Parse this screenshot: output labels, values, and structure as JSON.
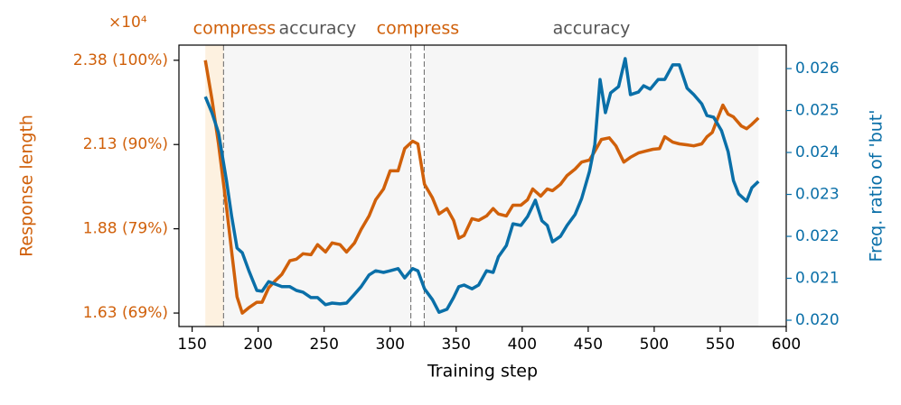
{
  "chart_data": {
    "type": "line",
    "xlabel": "Training step",
    "ylabel": "Response length",
    "y2label": "Freq. ratio of 'but'",
    "y_offset_label": "×10⁴",
    "xlim": [
      140,
      600
    ],
    "xticks": [
      150,
      200,
      250,
      300,
      350,
      400,
      450,
      500,
      550,
      600
    ],
    "ylim": [
      1.59,
      2.425
    ],
    "yticks": [
      {
        "value": 1.63,
        "label": "1.63 (69%)"
      },
      {
        "value": 1.88,
        "label": "1.88 (79%)"
      },
      {
        "value": 2.13,
        "label": "2.13 (90%)"
      },
      {
        "value": 2.38,
        "label": "2.38 (100%)"
      }
    ],
    "y2lim": [
      0.01985,
      0.02656
    ],
    "y2ticks": [
      {
        "value": 0.02,
        "label": "0.020"
      },
      {
        "value": 0.021,
        "label": "0.021"
      },
      {
        "value": 0.022,
        "label": "0.022"
      },
      {
        "value": 0.023,
        "label": "0.023"
      },
      {
        "value": 0.024,
        "label": "0.024"
      },
      {
        "value": 0.025,
        "label": "0.025"
      },
      {
        "value": 0.026,
        "label": "0.026"
      }
    ],
    "regions": [
      {
        "label": "compress",
        "start": 160,
        "end": 174,
        "color": "#fdf1e0",
        "label_color": "#d0600a"
      },
      {
        "label": "accuracy",
        "start": 174,
        "end": 316,
        "color": "#f6f6f6",
        "label_color": "#555555"
      },
      {
        "label": "compress",
        "start": 316,
        "end": 326,
        "color": "#ffffff",
        "label_color": "#d0600a"
      },
      {
        "label": "accuracy",
        "start": 326,
        "end": 579,
        "color": "#f6f6f6",
        "label_color": "#555555"
      }
    ],
    "series": [
      {
        "name": "Response length",
        "color": "#d0600a",
        "axis": "y",
        "x": [
          160,
          165,
          170,
          176,
          180,
          184,
          188,
          193,
          199,
          203,
          208,
          213,
          218,
          224,
          229,
          234,
          240,
          245,
          251,
          256,
          262,
          267,
          273,
          278,
          284,
          289,
          295,
          300,
          306,
          311,
          317,
          321,
          326,
          332,
          337,
          343,
          348,
          352,
          356,
          362,
          367,
          373,
          378,
          382,
          388,
          393,
          399,
          404,
          408,
          414,
          419,
          423,
          429,
          434,
          440,
          445,
          451,
          455,
          460,
          466,
          471,
          477,
          482,
          488,
          493,
          499,
          504,
          508,
          514,
          519,
          525,
          530,
          536,
          540,
          544,
          548,
          552,
          556,
          560,
          566,
          570,
          574,
          579
        ],
        "values": [
          2.38,
          2.265,
          2.132,
          1.945,
          1.811,
          1.678,
          1.63,
          1.646,
          1.662,
          1.662,
          1.705,
          1.726,
          1.745,
          1.785,
          1.79,
          1.806,
          1.803,
          1.833,
          1.811,
          1.838,
          1.833,
          1.811,
          1.838,
          1.878,
          1.918,
          1.966,
          1.998,
          2.052,
          2.052,
          2.118,
          2.14,
          2.132,
          2.012,
          1.972,
          1.924,
          1.94,
          1.905,
          1.852,
          1.86,
          1.91,
          1.905,
          1.918,
          1.94,
          1.924,
          1.918,
          1.95,
          1.95,
          1.966,
          1.998,
          1.977,
          1.998,
          1.993,
          2.012,
          2.038,
          2.057,
          2.078,
          2.084,
          2.11,
          2.145,
          2.15,
          2.126,
          2.078,
          2.092,
          2.105,
          2.11,
          2.116,
          2.118,
          2.153,
          2.137,
          2.132,
          2.129,
          2.126,
          2.132,
          2.153,
          2.166,
          2.207,
          2.247,
          2.22,
          2.212,
          2.185,
          2.177,
          2.19,
          2.209
        ]
      },
      {
        "name": "Freq. ratio of 'but'",
        "color": "#0a6fa8",
        "axis": "y2",
        "x": [
          160,
          165,
          170,
          176,
          180,
          184,
          188,
          193,
          199,
          203,
          208,
          213,
          218,
          224,
          229,
          234,
          240,
          245,
          251,
          256,
          262,
          267,
          273,
          278,
          284,
          289,
          295,
          300,
          306,
          311,
          317,
          321,
          326,
          332,
          337,
          343,
          348,
          352,
          356,
          362,
          367,
          373,
          378,
          382,
          388,
          393,
          399,
          404,
          410,
          415,
          419,
          423,
          429,
          434,
          440,
          445,
          451,
          455,
          459,
          463,
          467,
          473,
          478,
          482,
          488,
          492,
          497,
          503,
          508,
          514,
          519,
          525,
          530,
          536,
          540,
          545,
          551,
          556,
          560,
          564,
          570,
          574,
          579
        ],
        "values": [
          0.02533,
          0.02495,
          0.02447,
          0.02333,
          0.02247,
          0.02172,
          0.02161,
          0.02118,
          0.02071,
          0.02069,
          0.02092,
          0.02086,
          0.0208,
          0.0208,
          0.02071,
          0.02067,
          0.02054,
          0.02054,
          0.02037,
          0.02041,
          0.02039,
          0.02041,
          0.02062,
          0.0208,
          0.02108,
          0.02118,
          0.02114,
          0.02118,
          0.02123,
          0.02101,
          0.02123,
          0.02118,
          0.02075,
          0.02049,
          0.02019,
          0.02026,
          0.02054,
          0.0208,
          0.02084,
          0.02075,
          0.02084,
          0.02118,
          0.02114,
          0.02151,
          0.02178,
          0.0223,
          0.02226,
          0.02247,
          0.02286,
          0.02237,
          0.02226,
          0.02187,
          0.022,
          0.02226,
          0.02252,
          0.0229,
          0.02355,
          0.02419,
          0.02574,
          0.02495,
          0.02542,
          0.02557,
          0.02624,
          0.02538,
          0.02544,
          0.02559,
          0.02551,
          0.02574,
          0.02574,
          0.02609,
          0.02609,
          0.02553,
          0.02538,
          0.02516,
          0.02488,
          0.02484,
          0.02452,
          0.02402,
          0.02333,
          0.02301,
          0.02284,
          0.02316,
          0.02331
        ]
      }
    ]
  }
}
